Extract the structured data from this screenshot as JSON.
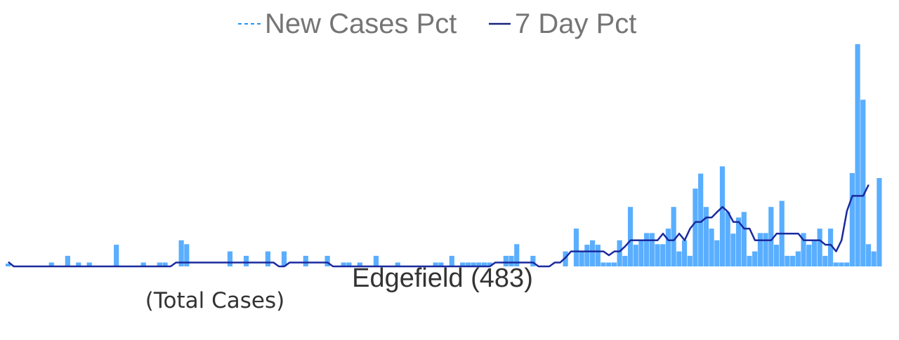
{
  "chart_data": {
    "type": "bar",
    "title": "Edgefield (483)",
    "subtitle": "(Total Cases)",
    "legend": [
      {
        "name": "New Cases Pct",
        "color": "#2196f3",
        "style": "dashed"
      },
      {
        "name": "7 Day Pct",
        "color": "#1a237e",
        "style": "solid"
      }
    ],
    "legend_position": "top-center",
    "grid": false,
    "axes_visible": false,
    "ylim": [
      0,
      0.04
    ],
    "series": [
      {
        "name": "New Cases Pct",
        "type": "bar",
        "color": "#5aaeff",
        "values": [
          0.0005,
          0,
          0,
          0,
          0,
          0,
          0,
          0,
          0.0007,
          0,
          0,
          0.0019,
          0,
          0.0007,
          0,
          0.0007,
          0,
          0,
          0,
          0,
          0.0039,
          0,
          0,
          0,
          0,
          0.0007,
          0,
          0,
          0.0007,
          0.0007,
          0,
          0,
          0.0047,
          0.004,
          0,
          0,
          0,
          0,
          0,
          0,
          0,
          0.0027,
          0,
          0,
          0.0019,
          0,
          0,
          0,
          0.0027,
          0,
          0,
          0.0027,
          0,
          0,
          0,
          0.0019,
          0,
          0,
          0,
          0.0019,
          0,
          0,
          0.0007,
          0.0007,
          0,
          0.0007,
          0,
          0,
          0.0019,
          0,
          0,
          0,
          0.0007,
          0,
          0,
          0,
          0,
          0,
          0,
          0.0007,
          0.0007,
          0,
          0.0019,
          0,
          0.0007,
          0.0007,
          0.0007,
          0.0007,
          0.0007,
          0.0007,
          0,
          0,
          0.0019,
          0.0019,
          0.004,
          0,
          0,
          0.0019,
          0,
          0,
          0,
          0,
          0,
          0.0027,
          0,
          0.0068,
          0.0027,
          0.0039,
          0.0047,
          0.0039,
          0.0007,
          0.0007,
          0.0007,
          0.0047,
          0.0019,
          0.0107,
          0.0039,
          0.0047,
          0.006,
          0.006,
          0.004,
          0.004,
          0.0068,
          0.0107,
          0.0027,
          0.0047,
          0.0019,
          0.014,
          0.0167,
          0.0107,
          0.0068,
          0.0047,
          0.018,
          0.0098,
          0.0059,
          0.0088,
          0.0098,
          0.0019,
          0.0027,
          0.006,
          0.006,
          0.0107,
          0.0039,
          0.0118,
          0.0019,
          0.0019,
          0.0027,
          0.006,
          0.0039,
          0.0047,
          0.0068,
          0.0019,
          0.0068,
          0.0007,
          0.0007,
          0.0007,
          0.0168,
          0.04,
          0.03,
          0.004,
          0.0027,
          0.0159
        ]
      },
      {
        "name": "7 Day Pct",
        "type": "line",
        "color": "#1a2a9e",
        "values": [
          0.0008,
          0,
          0,
          0,
          0,
          0,
          0,
          0,
          0,
          0,
          0,
          0,
          0,
          0,
          0,
          0,
          0,
          0,
          0,
          0,
          0,
          0,
          0,
          0,
          0,
          0,
          0,
          0,
          0,
          0,
          0,
          0.0007,
          0.0007,
          0.0007,
          0.0007,
          0.0007,
          0.0007,
          0.0007,
          0.0007,
          0.0007,
          0.0007,
          0.0007,
          0.0007,
          0.0007,
          0.0007,
          0.0007,
          0.0007,
          0.0007,
          0.0007,
          0.0007,
          0,
          0,
          0.0007,
          0.0007,
          0.0007,
          0.0007,
          0.0007,
          0.0007,
          0.0007,
          0.0007,
          0,
          0,
          0,
          0,
          0,
          0,
          0,
          0,
          0,
          0,
          0,
          0,
          0,
          0,
          0,
          0,
          0,
          0,
          0,
          0,
          0,
          0,
          0,
          0,
          0,
          0,
          0,
          0,
          0,
          0,
          0.0007,
          0.0007,
          0.0007,
          0.0007,
          0.0007,
          0.0007,
          0.0007,
          0.0007,
          0,
          0,
          0,
          0.0007,
          0.0007,
          0.0016,
          0.0027,
          0.0027,
          0.0027,
          0.0027,
          0.0027,
          0.0027,
          0.0027,
          0.002,
          0.0027,
          0.0027,
          0.0036,
          0.0047,
          0.0047,
          0.0047,
          0.0047,
          0.0047,
          0.0047,
          0.0059,
          0.0047,
          0.0047,
          0.0059,
          0.0047,
          0.0068,
          0.008,
          0.008,
          0.0088,
          0.0088,
          0.0098,
          0.0107,
          0.0098,
          0.008,
          0.008,
          0.0068,
          0.0068,
          0.0047,
          0.0047,
          0.0047,
          0.0047,
          0.0059,
          0.0059,
          0.0059,
          0.0059,
          0.0059,
          0.0047,
          0.0047,
          0.0047,
          0.0047,
          0.0039,
          0.0039,
          0.0027,
          0.0047,
          0.01,
          0.0127,
          0.0127,
          0.0127,
          0.0147
        ]
      }
    ]
  }
}
